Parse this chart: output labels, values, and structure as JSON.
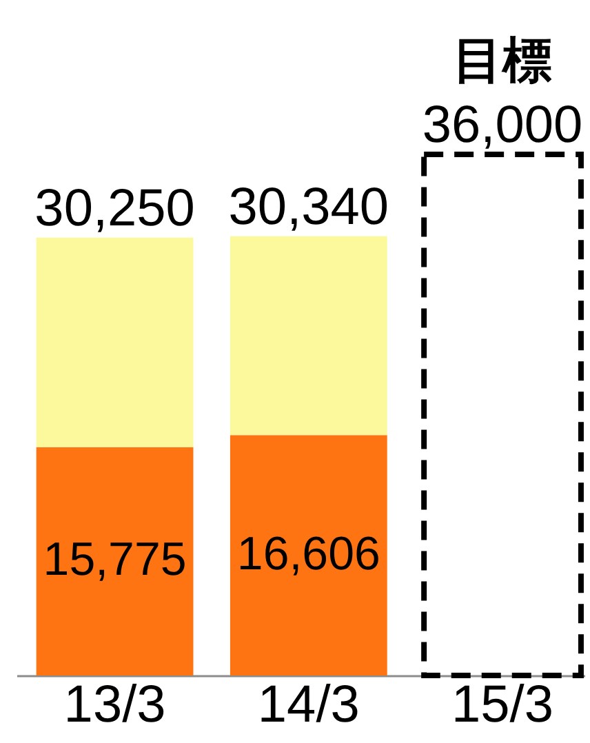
{
  "chart_data": {
    "type": "bar",
    "categories": [
      "13/3",
      "14/3",
      "15/3"
    ],
    "stacked": true,
    "series": [
      {
        "color": "#ff7412",
        "values": [
          15775,
          16606,
          null
        ],
        "value_labels": [
          "15,775",
          "16,606",
          null
        ]
      },
      {
        "color": "#fbf99c",
        "values": [
          14475,
          13734,
          null
        ]
      },
      {
        "name": "目標",
        "color": "#000000",
        "values": [
          null,
          null,
          36000
        ],
        "line_style": "dashed"
      }
    ],
    "totals": [
      "30,250",
      "30,340",
      "36,000"
    ],
    "tick_labels": "x",
    "legend": false,
    "grid": false
  }
}
